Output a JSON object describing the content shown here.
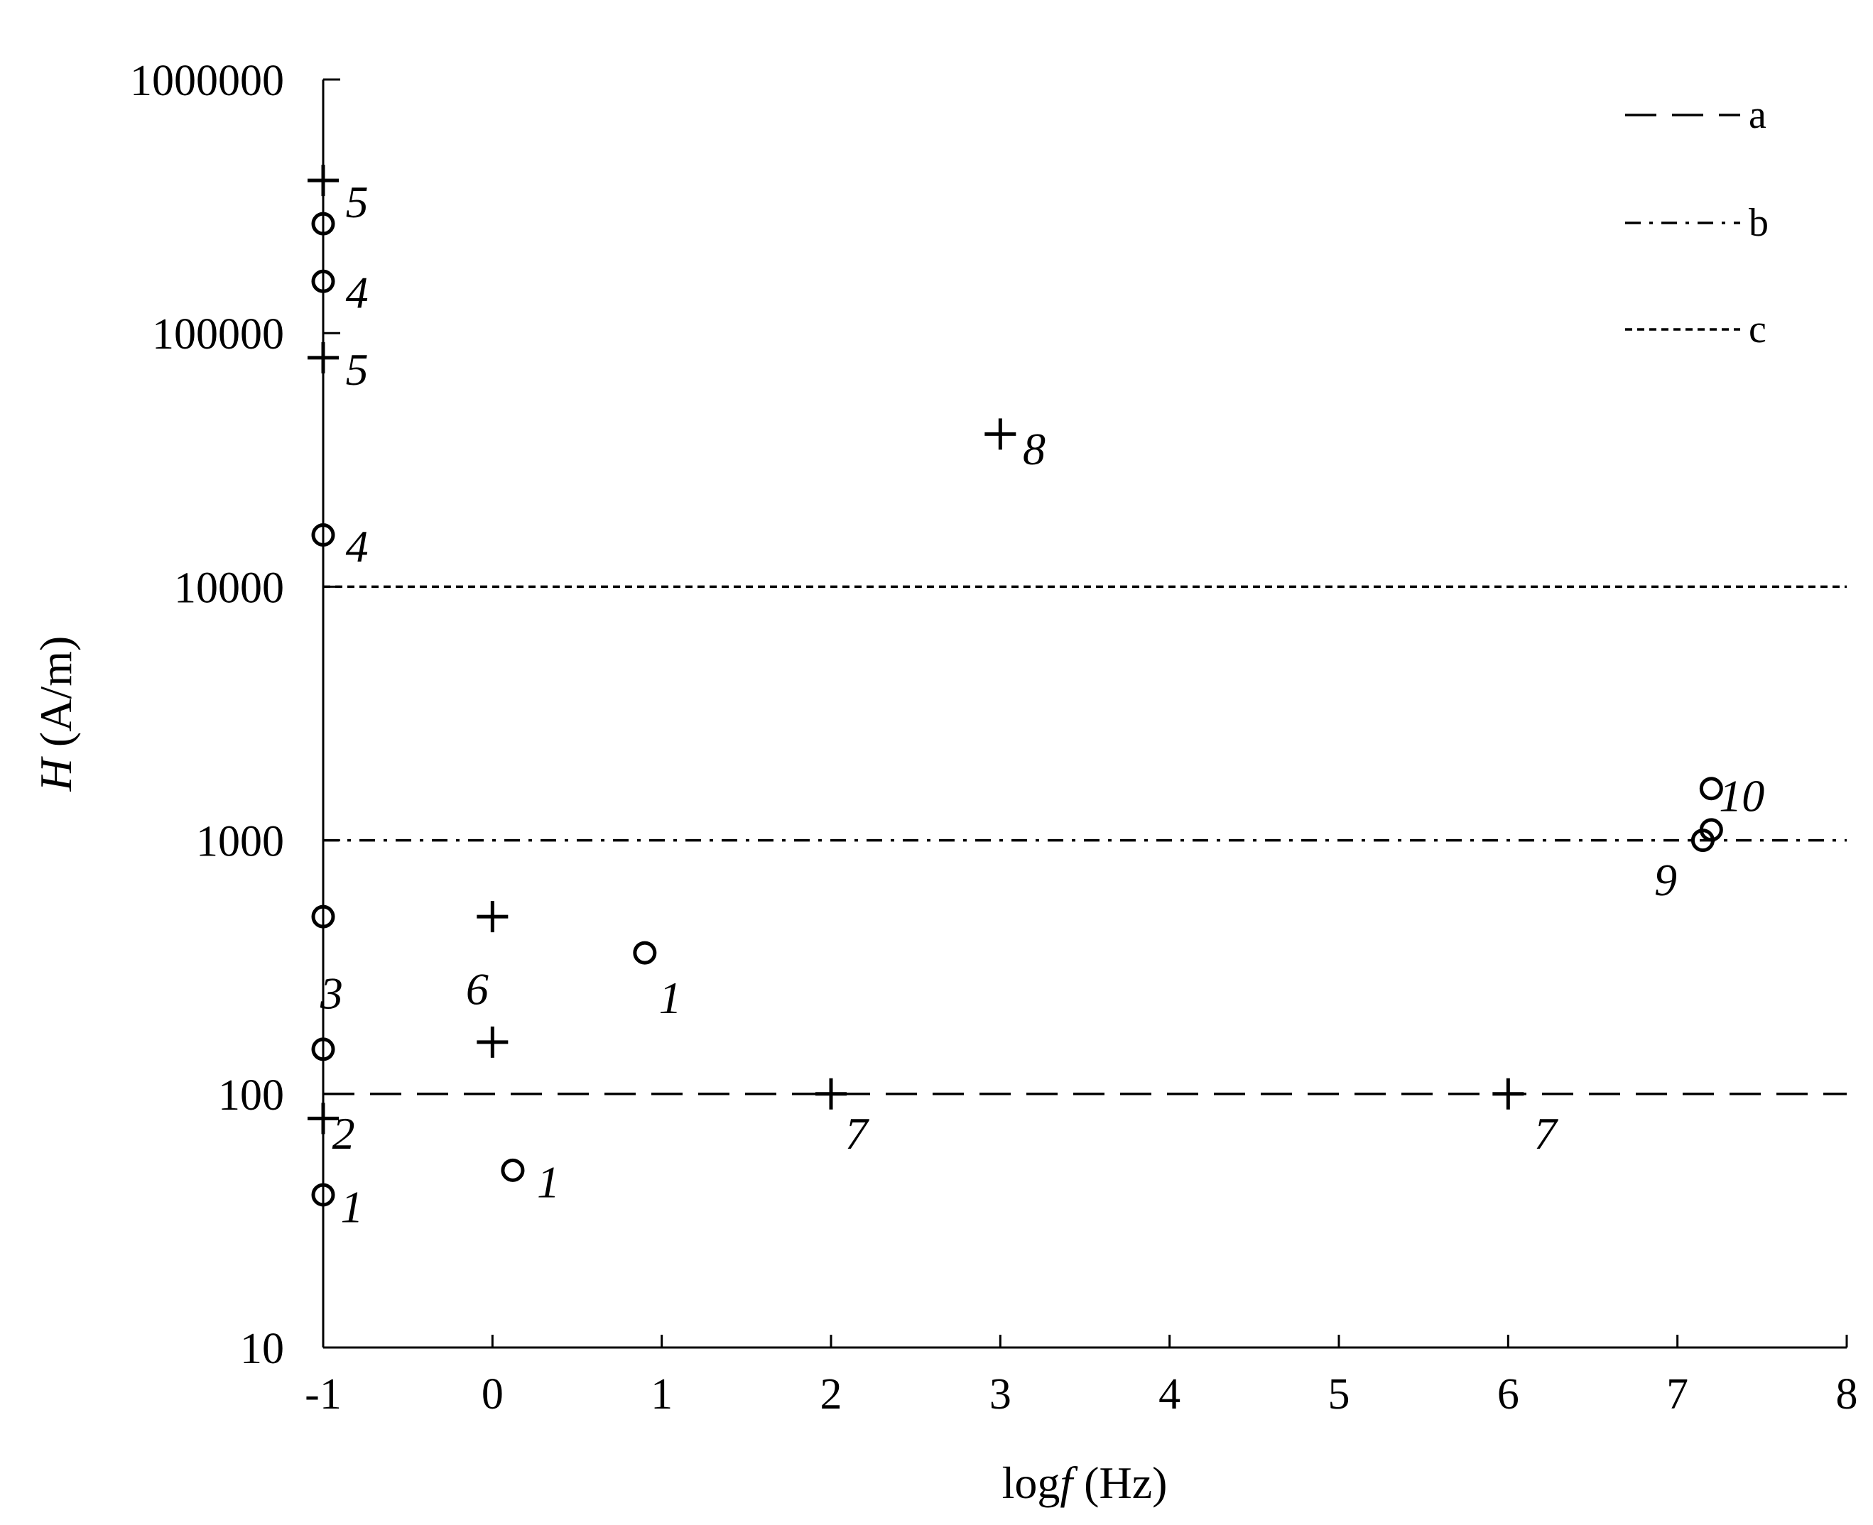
{
  "chart_data": {
    "type": "scatter",
    "title": "",
    "xlabel_prefix": "log",
    "xlabel_var": "f",
    "xlabel_unit": " (Hz)",
    "ylabel_var": "H",
    "ylabel_unit": " (A/m)",
    "xlim": [
      -1,
      8
    ],
    "ylim": [
      10,
      1000000
    ],
    "y_scale": "log",
    "grid": false,
    "legend_position": "top-right",
    "x_ticks": [
      "-1",
      "0",
      "1",
      "2",
      "3",
      "4",
      "5",
      "6",
      "7",
      "8"
    ],
    "y_ticks": [
      "10",
      "100",
      "1000",
      "10000",
      "100000",
      "1000000"
    ],
    "reference_lines": [
      {
        "name": "a",
        "y": 100,
        "style": "dashed"
      },
      {
        "name": "b",
        "y": 1000,
        "style": "dash-dot"
      },
      {
        "name": "c",
        "y": 10000,
        "style": "dotted"
      }
    ],
    "marker_types": [
      "circle",
      "plus"
    ],
    "points": [
      {
        "x": -1,
        "y": 400000,
        "marker": "plus"
      },
      {
        "x": -1,
        "y": 270000,
        "marker": "circle"
      },
      {
        "x": -1,
        "y": 160000,
        "marker": "circle"
      },
      {
        "x": -1,
        "y": 80000,
        "marker": "plus"
      },
      {
        "x": -1,
        "y": 16000,
        "marker": "circle"
      },
      {
        "x": -1,
        "y": 500,
        "marker": "circle"
      },
      {
        "x": -1,
        "y": 150,
        "marker": "circle"
      },
      {
        "x": -1,
        "y": 80,
        "marker": "plus"
      },
      {
        "x": -1,
        "y": 40,
        "marker": "circle"
      },
      {
        "x": 0,
        "y": 500,
        "marker": "plus"
      },
      {
        "x": 0,
        "y": 160,
        "marker": "plus"
      },
      {
        "x": 0.12,
        "y": 50,
        "marker": "circle"
      },
      {
        "x": 0.9,
        "y": 360,
        "marker": "circle"
      },
      {
        "x": 2,
        "y": 100,
        "marker": "plus"
      },
      {
        "x": 3,
        "y": 40000,
        "marker": "plus"
      },
      {
        "x": 6,
        "y": 100,
        "marker": "plus"
      },
      {
        "x": 7.15,
        "y": 1000,
        "marker": "circle"
      },
      {
        "x": 7.2,
        "y": 1100,
        "marker": "circle"
      },
      {
        "x": 7.2,
        "y": 1600,
        "marker": "circle"
      }
    ],
    "annotations": [
      {
        "text": "5",
        "x": -0.8,
        "y": 330000
      },
      {
        "text": "4",
        "x": -0.8,
        "y": 145000
      },
      {
        "text": "5",
        "x": -0.8,
        "y": 72000
      },
      {
        "text": "4",
        "x": -0.8,
        "y": 14500
      },
      {
        "text": "3",
        "x": -0.95,
        "y": 250
      },
      {
        "text": "2",
        "x": -0.88,
        "y": 70
      },
      {
        "text": "1",
        "x": -0.83,
        "y": 36
      },
      {
        "text": "6",
        "x": -0.09,
        "y": 260
      },
      {
        "text": "1",
        "x": 0.33,
        "y": 45
      },
      {
        "text": "1",
        "x": 1.05,
        "y": 240
      },
      {
        "text": "7",
        "x": 2.15,
        "y": 70
      },
      {
        "text": "8",
        "x": 3.2,
        "y": 35000
      },
      {
        "text": "7",
        "x": 6.22,
        "y": 70
      },
      {
        "text": "10",
        "x": 7.38,
        "y": 1500
      },
      {
        "text": "9",
        "x": 6.93,
        "y": 700
      }
    ]
  }
}
